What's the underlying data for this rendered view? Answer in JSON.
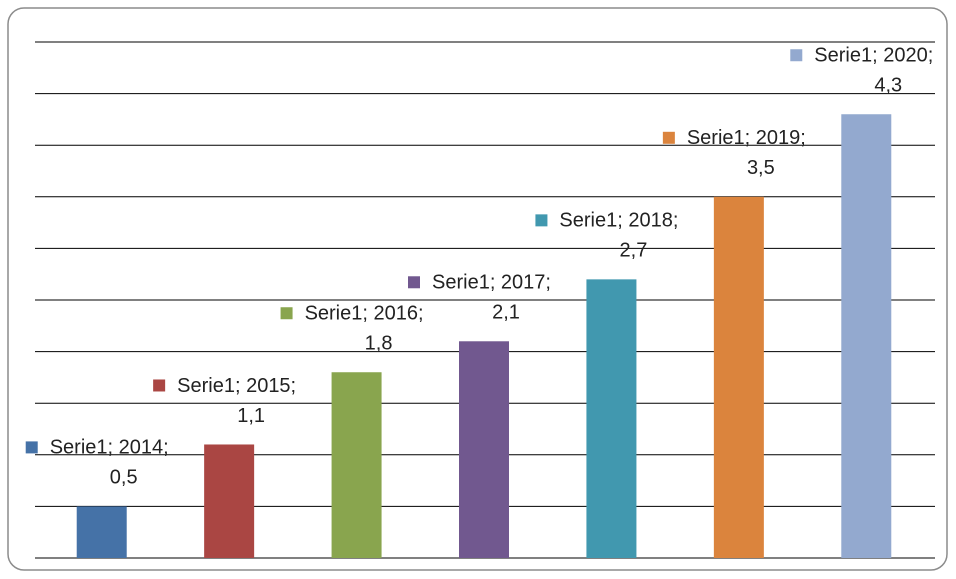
{
  "chart_data": {
    "type": "bar",
    "categories": [
      "2014",
      "2015",
      "2016",
      "2017",
      "2018",
      "2019",
      "2020"
    ],
    "series": [
      {
        "name": "Serie1",
        "colors": [
          "#4572a7",
          "#aa4643",
          "#89a54e",
          "#71588f",
          "#4198af",
          "#db843d",
          "#93a9cf"
        ],
        "values": [
          0.5,
          1.1,
          1.8,
          2.1,
          2.7,
          3.5,
          4.3
        ],
        "value_labels": [
          "0,5",
          "1,1",
          "1,8",
          "2,1",
          "2,7",
          "3,5",
          "4,3"
        ],
        "label_prefixes": [
          "Serie1; 2014;",
          "Serie1; 2015;",
          "Serie1; 2016;",
          "Serie1; 2017;",
          "Serie1; 2018;",
          "Serie1; 2019;",
          "Serie1; 2020;"
        ]
      }
    ],
    "ylim": [
      0,
      5
    ],
    "yticks": [
      0,
      0.5,
      1,
      1.5,
      2,
      2.5,
      3,
      3.5,
      4,
      4.5,
      5
    ],
    "grid": true
  }
}
